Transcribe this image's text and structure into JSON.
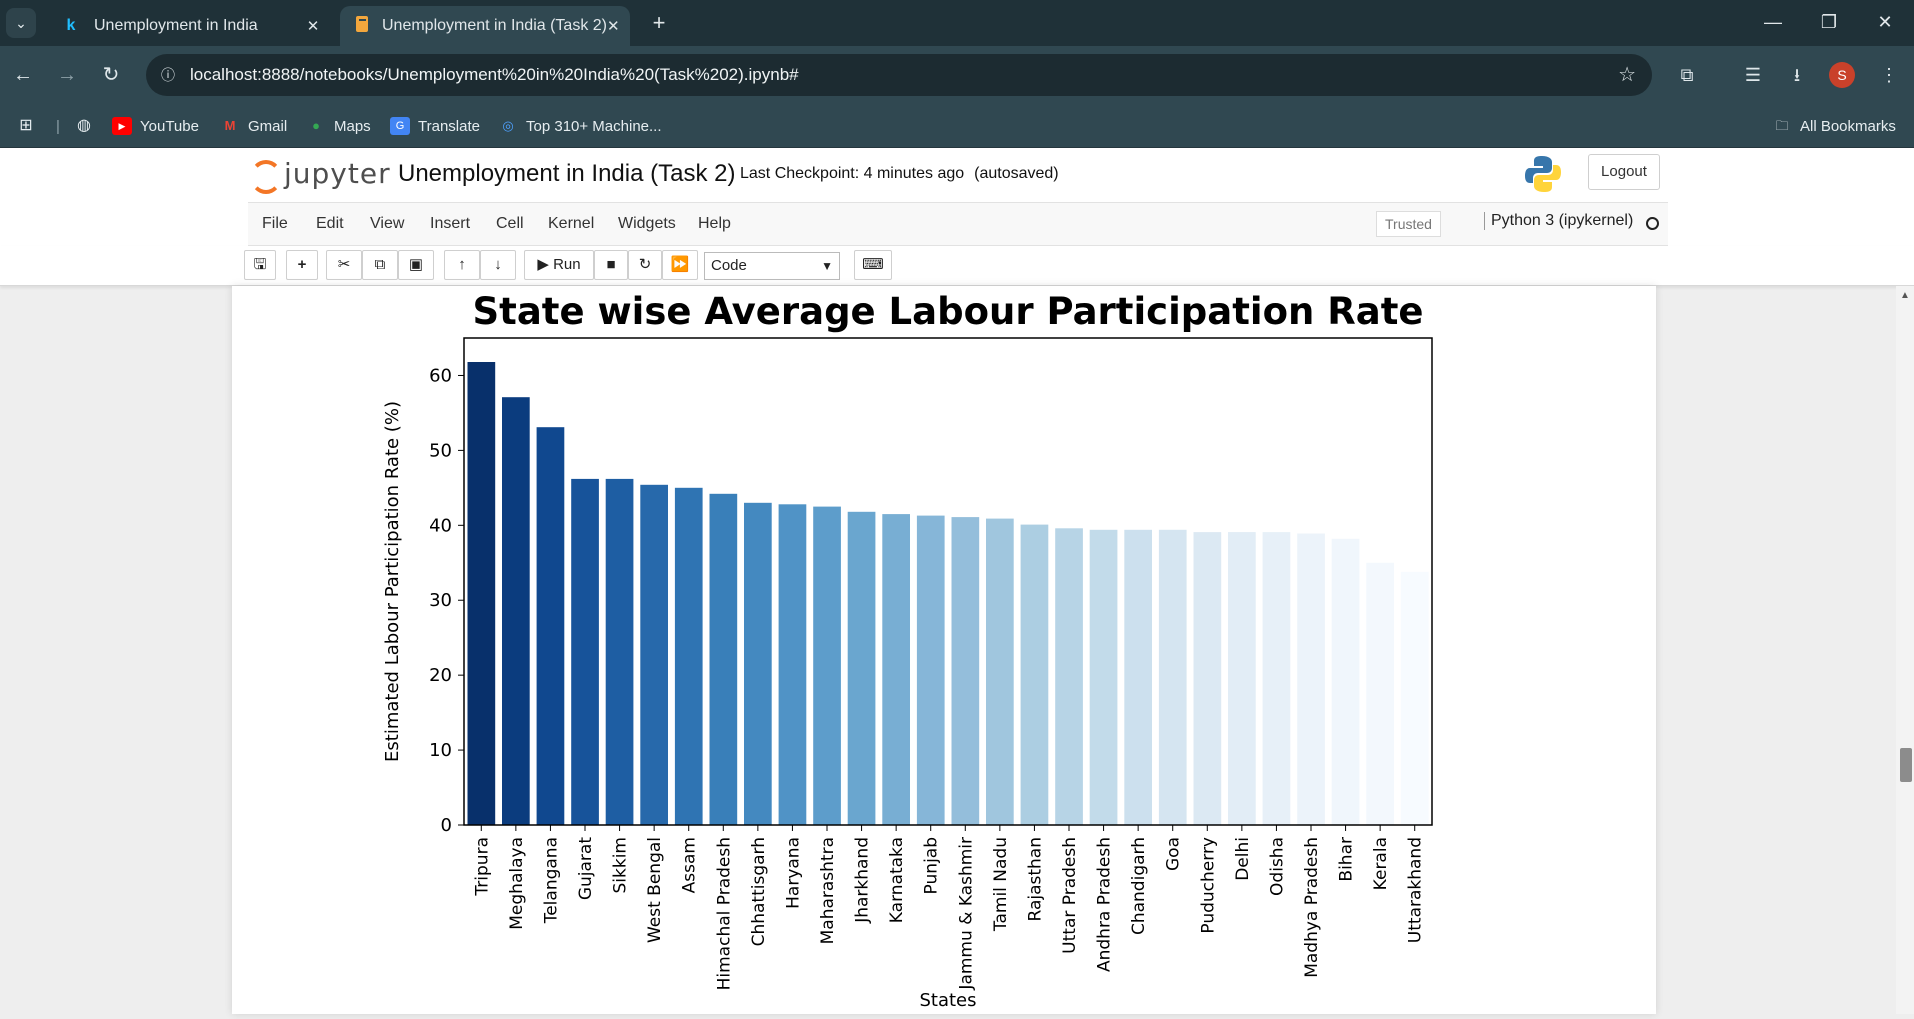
{
  "browser": {
    "tabs": [
      {
        "title": "Unemployment in India",
        "favicon": "k"
      },
      {
        "title": "Unemployment in India (Task 2)",
        "favicon": "notebook-icon"
      }
    ],
    "url": "localhost:8888/notebooks/Unemployment%20in%20India%20(Task%202).ipynb#",
    "profile_initial": "S",
    "bookmarks": [
      "YouTube",
      "Gmail",
      "Maps",
      "Translate",
      "Top 310+ Machine..."
    ],
    "all_bookmarks": "All Bookmarks"
  },
  "jupyter": {
    "logo_text": "jupyter",
    "notebook_name": "Unemployment in India (Task 2)",
    "checkpoint": "Last Checkpoint: 4 minutes ago",
    "autosave": "(autosaved)",
    "logout": "Logout",
    "menu": [
      "File",
      "Edit",
      "View",
      "Insert",
      "Cell",
      "Kernel",
      "Widgets",
      "Help"
    ],
    "trusted": "Trusted",
    "kernel": "Python 3 (ipykernel)",
    "run_label": "Run",
    "cell_type": "Code"
  },
  "chart_data": {
    "type": "bar",
    "title": "State wise Average Labour Participation Rate",
    "xlabel": "States",
    "ylabel": "Estimated Labour Participation Rate (%)",
    "ylim": [
      0,
      65
    ],
    "yticks": [
      0,
      10,
      20,
      30,
      40,
      50,
      60
    ],
    "grid": false,
    "categories": [
      "Tripura",
      "Meghalaya",
      "Telangana",
      "Gujarat",
      "Sikkim",
      "West Bengal",
      "Assam",
      "Himachal Pradesh",
      "Chhattisgarh",
      "Haryana",
      "Maharashtra",
      "Jharkhand",
      "Karnataka",
      "Punjab",
      "Jammu & Kashmir",
      "Tamil Nadu",
      "Rajasthan",
      "Uttar Pradesh",
      "Andhra Pradesh",
      "Chandigarh",
      "Goa",
      "Puducherry",
      "Delhi",
      "Odisha",
      "Madhya Pradesh",
      "Bihar",
      "Kerala",
      "Uttarakhand"
    ],
    "values": [
      61.8,
      57.1,
      53.1,
      46.2,
      46.2,
      45.4,
      45.0,
      44.2,
      43.0,
      42.8,
      42.5,
      41.8,
      41.5,
      41.3,
      41.1,
      40.9,
      40.1,
      39.6,
      39.4,
      39.4,
      39.4,
      39.1,
      39.1,
      39.1,
      38.9,
      38.2,
      35.0,
      33.8
    ],
    "palette": "Blues_r",
    "colors": [
      "#08306b",
      "#0b3c7e",
      "#10488f",
      "#17539a",
      "#1e5ea3",
      "#2769ab",
      "#2f74b3",
      "#397fb9",
      "#4489c0",
      "#5093c6",
      "#5d9dcb",
      "#6aa6cf",
      "#78aed3",
      "#86b6d8",
      "#94bedb",
      "#a0c6de",
      "#acceE2",
      "#b7d4e6",
      "#c2dbea",
      "#ccE0ee",
      "#d5e5f1",
      "#dce9f3",
      "#e2edf6",
      "#e7f0f8",
      "#ecf3fa",
      "#f0f6fc",
      "#f3f8fd",
      "#f7fbff"
    ]
  }
}
